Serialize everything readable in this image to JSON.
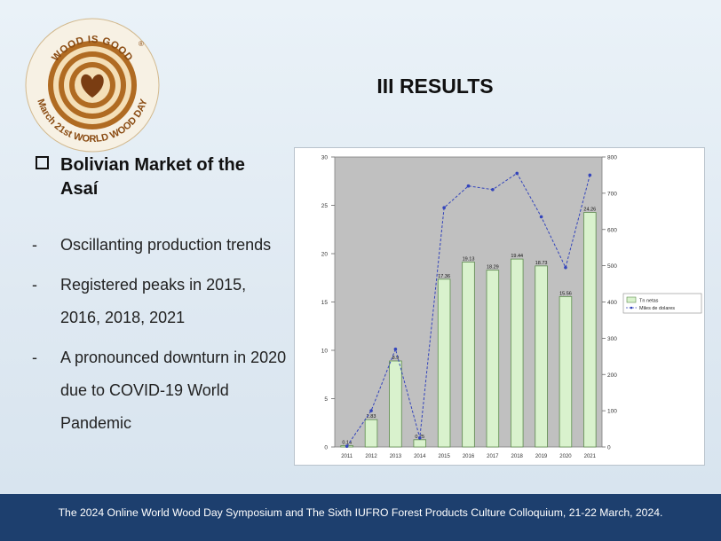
{
  "slide": {
    "title": "III RESULTS",
    "heading_line1": "Bolivian Market of the",
    "heading_line2": "Asaí",
    "bullets": [
      "Oscillanting production trends",
      "Registered peaks in 2015, 2016, 2018, 2021",
      "A pronounced downturn in 2020 due to COVID-19 World Pandemic"
    ],
    "bullet_marker": "-"
  },
  "logo": {
    "top_text": "WOOD IS GOOD",
    "registered": "®",
    "ring_text": "March 21st WORLD WOOD DAY",
    "colors": {
      "ring_dark": "#b06b22",
      "ring_light": "#f4dfb7",
      "heart": "#7a3d12"
    }
  },
  "footer": {
    "text": "The 2024 Online World Wood Day Symposium and The Sixth IUFRO Forest Products Culture Colloquium, 21-22 March, 2024.",
    "background": "#1d3f6e"
  },
  "chart_data": {
    "type": "bar",
    "categories": [
      "2011",
      "2012",
      "2013",
      "2014",
      "2015",
      "2016",
      "2017",
      "2018",
      "2019",
      "2020",
      "2021"
    ],
    "series": [
      {
        "name": "Tn netas",
        "kind": "bar",
        "axis": "left",
        "values": [
          0.14,
          2.83,
          8.9,
          0.75,
          17.36,
          19.13,
          18.29,
          19.44,
          18.73,
          15.56,
          24.26
        ],
        "labels": [
          "0.14",
          "2.83",
          "8.9",
          "0.75",
          "17.36",
          "19.13",
          "18.29",
          "19.44",
          "18.73",
          "15.56",
          "24.26"
        ]
      },
      {
        "name": "Miles de dolares",
        "kind": "line",
        "axis": "right",
        "values": [
          2,
          100,
          270,
          25,
          660,
          720,
          710,
          755,
          635,
          495,
          750
        ]
      }
    ],
    "y_left": {
      "range": [
        0,
        30
      ],
      "ticks": [
        "0",
        "5",
        "10",
        "15",
        "20",
        "25",
        "30"
      ]
    },
    "y_right": {
      "range": [
        0,
        800
      ],
      "ticks": [
        "0",
        "100",
        "200",
        "300",
        "400",
        "500",
        "600",
        "700",
        "800"
      ]
    },
    "legend_position": "right",
    "colors": {
      "bar_fill": "#d9f2cd",
      "bar_stroke": "#5d8b4d",
      "line": "#3344bb",
      "plot_bg": "#c0c0c0"
    }
  }
}
